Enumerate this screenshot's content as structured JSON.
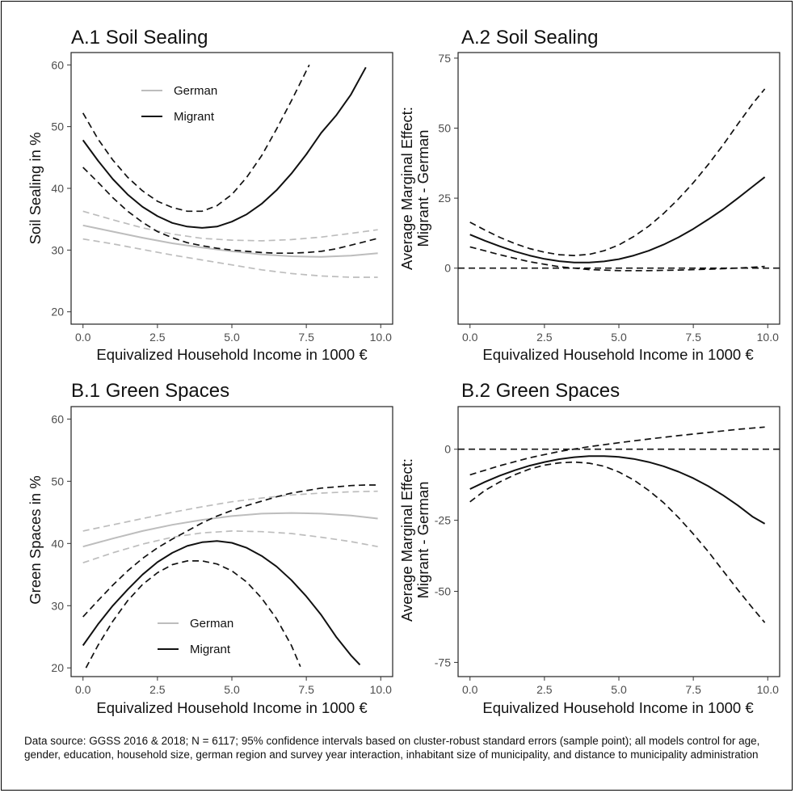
{
  "figure": {
    "caption": "Data source: GGSS 2016 & 2018; N = 6117; 95% confidence intervals based on cluster-robust standard errors (sample point); all models control for age, gender, education, household size, german region and survey year interaction, inhabitant size of municipality, and distance to municipality administration"
  },
  "chart_data": [
    {
      "id": "A1",
      "type": "line",
      "title": "A.1 Soil Sealing",
      "xlabel": "Equivalized Household Income in 1000 €",
      "ylabel": "Soil Sealing in %",
      "xlim": [
        -0.4,
        10.4
      ],
      "ylim": [
        18,
        62
      ],
      "xticks": [
        0,
        2.5,
        5,
        7.5,
        10
      ],
      "xtick_labels": [
        "0.0",
        "2.5",
        "5.0",
        "7.5",
        "10.0"
      ],
      "yticks": [
        20,
        30,
        40,
        50,
        60
      ],
      "ytick_labels": [
        "20",
        "30",
        "40",
        "50",
        "60"
      ],
      "grid": false,
      "legend": [
        "German",
        "Migrant"
      ],
      "legend_position": "top-left",
      "series": [
        {
          "name": "German",
          "style": "solid",
          "color": "#bdbdbd",
          "x": [
            0,
            1,
            2,
            3,
            4,
            5,
            6,
            7,
            8,
            9,
            9.9
          ],
          "y": [
            34.0,
            33.0,
            32.0,
            31.1,
            30.4,
            29.8,
            29.3,
            29.0,
            28.9,
            29.1,
            29.5
          ]
        },
        {
          "name": "German upper 95% CI",
          "style": "dashed",
          "color": "#bdbdbd",
          "x": [
            0,
            1,
            2,
            3,
            4,
            5,
            6,
            7,
            8,
            9,
            9.9
          ],
          "y": [
            36.3,
            34.9,
            33.6,
            32.6,
            31.9,
            31.6,
            31.5,
            31.7,
            32.1,
            32.7,
            33.3
          ]
        },
        {
          "name": "German lower 95% CI",
          "style": "dashed",
          "color": "#bdbdbd",
          "x": [
            0,
            1,
            2,
            3,
            4,
            5,
            6,
            7,
            8,
            9,
            9.9
          ],
          "y": [
            31.8,
            31.0,
            30.1,
            29.2,
            28.4,
            27.6,
            26.8,
            26.2,
            25.8,
            25.6,
            25.6
          ]
        },
        {
          "name": "Migrant",
          "style": "solid",
          "color": "#111111",
          "x": [
            0,
            0.5,
            1,
            1.5,
            2,
            2.5,
            3,
            3.5,
            4,
            4.5,
            5,
            5.5,
            6,
            6.5,
            7,
            7.5,
            8,
            8.5,
            9,
            9.5
          ],
          "y": [
            47.8,
            44.5,
            41.5,
            39.0,
            37.0,
            35.5,
            34.4,
            33.8,
            33.6,
            33.8,
            34.6,
            35.8,
            37.5,
            39.7,
            42.4,
            45.5,
            49.0,
            51.8,
            55.2,
            59.6
          ]
        },
        {
          "name": "Migrant upper 95% CI",
          "style": "dashed",
          "color": "#111111",
          "x": [
            0,
            0.5,
            1,
            1.5,
            2,
            2.5,
            3,
            3.5,
            4,
            4.5,
            5,
            5.5,
            6,
            6.5,
            7,
            7.6
          ],
          "y": [
            52.2,
            48.0,
            44.6,
            41.8,
            39.6,
            37.9,
            36.9,
            36.3,
            36.3,
            37.2,
            39.0,
            41.8,
            45.3,
            49.6,
            54.2,
            60.0
          ]
        },
        {
          "name": "Migrant lower 95% CI",
          "style": "dashed",
          "color": "#111111",
          "x": [
            0,
            0.5,
            1,
            1.5,
            2,
            2.5,
            3,
            3.5,
            4,
            4.5,
            5,
            5.5,
            6,
            6.5,
            7,
            7.5,
            8,
            8.5,
            9,
            9.5,
            9.9
          ],
          "y": [
            43.4,
            41.0,
            38.5,
            36.3,
            34.5,
            33.0,
            32.0,
            31.2,
            30.7,
            30.3,
            30.0,
            29.8,
            29.6,
            29.5,
            29.5,
            29.6,
            29.8,
            30.2,
            30.8,
            31.4,
            31.9
          ]
        }
      ]
    },
    {
      "id": "A2",
      "type": "line",
      "title": "A.2 Soil Sealing",
      "xlabel": "Equivalized Household Income in 1000 €",
      "ylabel": [
        "Average Marginal Effect:",
        "Migrant - German"
      ],
      "xlim": [
        -0.4,
        10.4
      ],
      "ylim": [
        -20,
        77
      ],
      "xticks": [
        0,
        2.5,
        5,
        7.5,
        10
      ],
      "xtick_labels": [
        "0.0",
        "2.5",
        "5.0",
        "7.5",
        "10.0"
      ],
      "yticks": [
        0,
        25,
        50,
        75
      ],
      "ytick_labels": [
        "0",
        "25",
        "50",
        "75"
      ],
      "grid": false,
      "series": [
        {
          "name": "Average marginal effect",
          "style": "solid",
          "color": "#111111",
          "x": [
            0,
            0.5,
            1,
            1.5,
            2,
            2.5,
            3,
            3.5,
            4,
            4.5,
            5,
            5.5,
            6,
            6.5,
            7,
            7.5,
            8,
            8.5,
            9,
            9.5,
            9.9
          ],
          "y": [
            12.0,
            9.8,
            7.8,
            6.0,
            4.5,
            3.3,
            2.5,
            2.0,
            2.0,
            2.4,
            3.2,
            4.5,
            6.2,
            8.4,
            11.0,
            14.0,
            17.4,
            21.0,
            25.0,
            29.2,
            32.5
          ]
        },
        {
          "name": "Upper 95% CI",
          "style": "dashed",
          "color": "#111111",
          "x": [
            0,
            0.5,
            1,
            1.5,
            2,
            2.5,
            3,
            3.5,
            4,
            4.5,
            5,
            5.5,
            6,
            6.5,
            7,
            7.5,
            8,
            8.5,
            9,
            9.5,
            9.9
          ],
          "y": [
            16.4,
            13.6,
            11.0,
            8.8,
            7.0,
            5.7,
            4.8,
            4.5,
            4.9,
            6.2,
            8.3,
            11.3,
            15.0,
            19.5,
            24.7,
            30.5,
            37.0,
            44.0,
            51.5,
            58.8,
            64.0
          ]
        },
        {
          "name": "Lower 95% CI",
          "style": "dashed",
          "color": "#111111",
          "x": [
            0,
            1,
            2,
            3,
            4,
            5,
            6,
            7,
            8,
            9,
            9.9
          ],
          "y": [
            7.6,
            4.8,
            2.3,
            0.5,
            -0.5,
            -0.9,
            -0.9,
            -0.7,
            -0.4,
            0.0,
            0.6
          ]
        },
        {
          "name": "Zero reference",
          "style": "dashed",
          "color": "#111111",
          "x": [
            -0.4,
            10.4
          ],
          "y": [
            0,
            0
          ]
        }
      ]
    },
    {
      "id": "B1",
      "type": "line",
      "title": "B.1 Green Spaces",
      "xlabel": "Equivalized Household Income in 1000 €",
      "ylabel": "Green Spaces in %",
      "xlim": [
        -0.4,
        10.4
      ],
      "ylim": [
        18.6,
        62
      ],
      "xticks": [
        0,
        2.5,
        5,
        7.5,
        10
      ],
      "xtick_labels": [
        "0.0",
        "2.5",
        "5.0",
        "7.5",
        "10.0"
      ],
      "yticks": [
        20,
        30,
        40,
        50,
        60
      ],
      "ytick_labels": [
        "20",
        "30",
        "40",
        "50",
        "60"
      ],
      "grid": false,
      "legend": [
        "German",
        "Migrant"
      ],
      "legend_position": "bottom-center",
      "series": [
        {
          "name": "German",
          "style": "solid",
          "color": "#bdbdbd",
          "x": [
            0,
            1,
            2,
            3,
            4,
            5,
            6,
            7,
            8,
            9,
            9.9
          ],
          "y": [
            39.5,
            40.8,
            42.0,
            43.0,
            43.8,
            44.4,
            44.8,
            44.9,
            44.8,
            44.5,
            44.0
          ]
        },
        {
          "name": "German upper 95% CI",
          "style": "dashed",
          "color": "#bdbdbd",
          "x": [
            0,
            1,
            2,
            3,
            4,
            5,
            6,
            7,
            8,
            9,
            9.9
          ],
          "y": [
            42.0,
            43.0,
            44.0,
            45.0,
            45.9,
            46.7,
            47.3,
            47.8,
            48.1,
            48.3,
            48.4
          ]
        },
        {
          "name": "German lower 95% CI",
          "style": "dashed",
          "color": "#bdbdbd",
          "x": [
            0,
            1,
            2,
            3,
            4,
            5,
            6,
            7,
            8,
            9,
            9.9
          ],
          "y": [
            36.9,
            38.5,
            39.9,
            41.0,
            41.7,
            42.0,
            41.9,
            41.6,
            41.0,
            40.3,
            39.5
          ]
        },
        {
          "name": "Migrant",
          "style": "solid",
          "color": "#111111",
          "x": [
            0,
            0.5,
            1,
            1.5,
            2,
            2.5,
            3,
            3.5,
            4,
            4.5,
            5,
            5.5,
            6,
            6.5,
            7,
            7.5,
            8,
            8.5,
            9,
            9.3
          ],
          "y": [
            23.6,
            27.0,
            30.0,
            32.6,
            35.0,
            37.0,
            38.5,
            39.6,
            40.2,
            40.4,
            40.1,
            39.3,
            38.0,
            36.3,
            34.1,
            31.5,
            28.5,
            25.0,
            22.0,
            20.5
          ]
        },
        {
          "name": "Migrant upper 95% CI",
          "style": "dashed",
          "color": "#111111",
          "x": [
            0,
            0.5,
            1,
            1.5,
            2,
            2.5,
            3,
            3.5,
            4,
            4.5,
            5,
            5.5,
            6,
            6.5,
            7,
            7.5,
            8,
            8.5,
            9,
            9.5,
            9.9
          ],
          "y": [
            28.2,
            30.8,
            33.3,
            35.6,
            37.6,
            39.3,
            40.7,
            42.0,
            43.3,
            44.4,
            45.3,
            46.1,
            46.8,
            47.5,
            48.1,
            48.5,
            48.9,
            49.1,
            49.3,
            49.4,
            49.4
          ]
        },
        {
          "name": "Migrant lower 95% CI",
          "style": "dashed",
          "color": "#111111",
          "x": [
            0.1,
            0.5,
            1,
            1.5,
            2,
            2.5,
            3,
            3.5,
            4,
            4.5,
            5,
            5.5,
            6,
            6.5,
            7,
            7.3
          ],
          "y": [
            20.0,
            23.6,
            27.5,
            30.8,
            33.4,
            35.3,
            36.6,
            37.2,
            37.2,
            36.7,
            35.6,
            33.8,
            31.2,
            27.9,
            23.6,
            20.2
          ]
        }
      ]
    },
    {
      "id": "B2",
      "type": "line",
      "title": "B.2 Green Spaces",
      "xlabel": "Equivalized Household Income in 1000 €",
      "ylabel": [
        "Average Marginal Effect:",
        "Migrant - German"
      ],
      "xlim": [
        -0.4,
        10.4
      ],
      "ylim": [
        -80,
        15
      ],
      "xticks": [
        0,
        2.5,
        5,
        7.5,
        10
      ],
      "xtick_labels": [
        "0.0",
        "2.5",
        "5.0",
        "7.5",
        "10.0"
      ],
      "yticks": [
        -75,
        -50,
        -25,
        0
      ],
      "ytick_labels": [
        "-75",
        "-50",
        "-25",
        "0"
      ],
      "grid": false,
      "series": [
        {
          "name": "Average marginal effect",
          "style": "solid",
          "color": "#111111",
          "x": [
            0,
            0.5,
            1,
            1.5,
            2,
            2.5,
            3,
            3.5,
            4,
            4.5,
            5,
            5.5,
            6,
            6.5,
            7,
            7.5,
            8,
            8.5,
            9,
            9.5,
            9.9
          ],
          "y": [
            -14.0,
            -11.5,
            -9.3,
            -7.4,
            -5.8,
            -4.5,
            -3.5,
            -2.8,
            -2.4,
            -2.4,
            -2.7,
            -3.4,
            -4.5,
            -6.0,
            -7.9,
            -10.2,
            -13.0,
            -16.2,
            -19.8,
            -23.8,
            -26.2
          ]
        },
        {
          "name": "Upper 95% CI",
          "style": "dashed",
          "color": "#111111",
          "x": [
            0,
            1,
            2,
            3,
            4,
            5,
            6,
            7,
            8,
            9,
            9.9
          ],
          "y": [
            -9.0,
            -5.8,
            -3.0,
            -0.8,
            0.9,
            2.3,
            3.6,
            4.8,
            5.9,
            7.0,
            7.8
          ]
        },
        {
          "name": "Lower 95% CI",
          "style": "dashed",
          "color": "#111111",
          "x": [
            0,
            0.5,
            1,
            1.5,
            2,
            2.5,
            3,
            3.5,
            4,
            4.5,
            5,
            5.5,
            6,
            6.5,
            7,
            7.5,
            8,
            8.5,
            9,
            9.5,
            9.9
          ],
          "y": [
            -18.5,
            -14.5,
            -11.5,
            -9.0,
            -7.0,
            -5.6,
            -4.8,
            -4.5,
            -4.9,
            -6.0,
            -8.0,
            -10.8,
            -14.5,
            -18.8,
            -24.0,
            -29.8,
            -36.0,
            -42.8,
            -49.5,
            -56.0,
            -61.0
          ]
        },
        {
          "name": "Zero reference",
          "style": "dashed",
          "color": "#111111",
          "x": [
            -0.4,
            10.4
          ],
          "y": [
            0,
            0
          ]
        }
      ]
    }
  ]
}
